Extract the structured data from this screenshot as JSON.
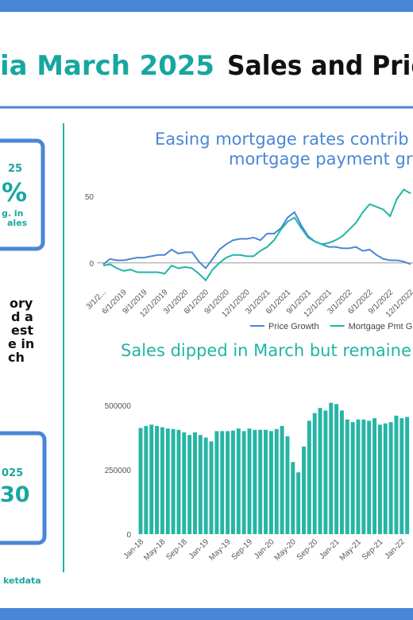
{
  "header": {
    "title_accent": "ia March 2025",
    "title_rest": "Sales and Pric"
  },
  "sidebar": {
    "card1": [
      "25",
      "%",
      "g. in",
      "ales"
    ],
    "story": [
      "ory",
      "d a",
      "est",
      "e in",
      "ch"
    ],
    "card2": [
      "025",
      "30"
    ],
    "footer": "ketdata"
  },
  "chart_data": [
    {
      "type": "line",
      "title": [
        "Easing mortgage rates contrib",
        "mortgage payment gr"
      ],
      "categories": [
        "3/1/2...",
        null,
        null,
        "6/1/2019",
        null,
        null,
        "9/1/2019",
        null,
        null,
        "12/1/2019",
        null,
        null,
        "3/1/2020",
        null,
        null,
        "6/1/2020",
        null,
        null,
        "9/1/2020",
        null,
        null,
        "12/1/2020",
        null,
        null,
        "3/1/2021",
        null,
        null,
        "6/1/2021",
        null,
        null,
        "9/1/2021",
        null,
        null,
        "12/1/2021",
        null,
        null,
        "3/1/2022",
        null,
        null,
        "6/1/2022",
        null,
        null,
        "9/1/2022",
        null,
        null,
        "12/1/2022"
      ],
      "series": [
        {
          "name": "Price Growth",
          "color": "#4a86d6",
          "values": [
            -1,
            3,
            2,
            2,
            3,
            4,
            4,
            5,
            6,
            6,
            10,
            7,
            8,
            8,
            1,
            -4,
            3,
            10,
            14,
            17,
            18,
            18,
            19,
            17,
            22,
            22,
            26,
            34,
            38,
            28,
            20,
            16,
            14,
            12,
            12,
            11,
            11,
            12,
            9,
            10,
            6,
            3,
            2,
            2,
            1,
            -1
          ]
        },
        {
          "name": "Mortgage Pmt G",
          "color": "#1fb5a6",
          "values": [
            -2,
            -1,
            -4,
            -6,
            -5,
            -7,
            -7,
            -7,
            -7,
            -8,
            -2,
            -4,
            -3,
            -4,
            -8,
            -13,
            -5,
            0,
            4,
            6,
            6,
            5,
            5,
            9,
            12,
            17,
            25,
            31,
            34,
            26,
            19,
            16,
            14,
            15,
            17,
            20,
            25,
            30,
            38,
            44,
            42,
            40,
            35,
            48,
            55,
            52
          ]
        }
      ],
      "ylim": [
        -15,
        60
      ],
      "yticks": [
        0,
        50
      ]
    },
    {
      "type": "bar",
      "title": "Sales dipped in March but remaine",
      "color": "#26b5a5",
      "categories": [
        "Jan-18",
        null,
        null,
        null,
        "May-18",
        null,
        null,
        null,
        "Sep-18",
        null,
        null,
        null,
        "Jan-19",
        null,
        null,
        null,
        "May-19",
        null,
        null,
        null,
        "Sep-19",
        null,
        null,
        null,
        "Jan-20",
        null,
        null,
        null,
        "May-20",
        null,
        null,
        null,
        "Sep-20",
        null,
        null,
        null,
        "Jan-21",
        null,
        null,
        null,
        "May-21",
        null,
        null,
        null,
        "Sep-21",
        null,
        null,
        null,
        "Jan-22",
        null
      ],
      "values": [
        412000,
        420000,
        425000,
        420000,
        415000,
        410000,
        408000,
        405000,
        395000,
        385000,
        395000,
        385000,
        375000,
        360000,
        400000,
        400000,
        400000,
        402000,
        410000,
        400000,
        410000,
        405000,
        405000,
        405000,
        400000,
        408000,
        420000,
        380000,
        280000,
        240000,
        340000,
        440000,
        470000,
        490000,
        480000,
        510000,
        505000,
        480000,
        445000,
        435000,
        445000,
        445000,
        440000,
        450000,
        425000,
        430000,
        435000,
        460000,
        450000,
        455000
      ],
      "ylim": [
        0,
        540000
      ],
      "yticks": [
        0,
        250000,
        500000
      ]
    }
  ]
}
